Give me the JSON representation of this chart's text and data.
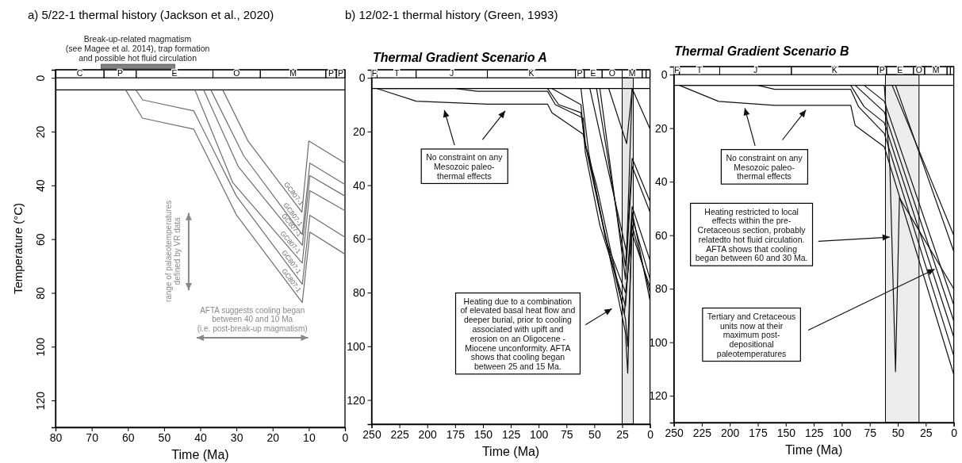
{
  "chart_data": [
    {
      "type": "line",
      "title": "a) 5/22-1 thermal history (Jackson et al., 2020)",
      "xlabel": "Time (Ma)",
      "ylabel": "Temperature (°C)",
      "xlim": [
        80,
        0
      ],
      "ylim": [
        130,
        -3
      ],
      "xticks": [
        80,
        70,
        60,
        50,
        40,
        30,
        20,
        10,
        0
      ],
      "yticks": [
        0,
        20,
        40,
        60,
        80,
        100,
        120
      ],
      "marker": "none",
      "line_style": "solid",
      "series": [
        {
          "name": "GC807-1",
          "color": "#6e6e6e",
          "x": [
            33.7,
            26.8,
            11.9,
            10,
            0
          ],
          "values": [
            4.7,
            23.5,
            50,
            23.5,
            31.7
          ]
        },
        {
          "name": "GC807-1",
          "color": "#6e6e6e",
          "x": [
            37,
            28,
            11.8,
            9.7,
            0
          ],
          "values": [
            4.7,
            29,
            58.3,
            31.7,
            39.7
          ]
        },
        {
          "name": "GC807-1",
          "color": "#6e6e6e",
          "x": [
            39,
            29.5,
            11.8,
            9.7,
            0
          ],
          "values": [
            4.7,
            33,
            62.3,
            36.4,
            44
          ]
        },
        {
          "name": "GC807-1",
          "color": "#6e6e6e",
          "x": [
            41.4,
            31,
            11.8,
            9.7,
            0
          ],
          "values": [
            4.7,
            39,
            68.9,
            42,
            49.4
          ]
        },
        {
          "name": "GC807-1",
          "color": "#6e6e6e",
          "x": [
            57.7,
            55.9,
            41.8,
            30,
            11.8,
            9.7,
            0
          ],
          "values": [
            4.7,
            8.2,
            12.3,
            44,
            76.8,
            51.1,
            59.3
          ]
        },
        {
          "name": "GC807-1",
          "color": "#6e6e6e",
          "x": [
            60.5,
            56,
            41.8,
            30,
            11.8,
            9.7,
            0
          ],
          "values": [
            4.7,
            15,
            19.1,
            51,
            83.6,
            57.4,
            65.6
          ]
        }
      ],
      "ref_lines": [
        {
          "axis": "y",
          "value": 4.5,
          "color": "#000000"
        }
      ],
      "annotations": [
        "range of palaeotemperatures\ndefined by VR data",
        "AFTA suggests cooling began\nbetween 40 and 10 Ma\n(i.e. post-break-up magmatism)",
        "Break-up-related magmatism\n(see Magee et al. 2014), trap formation\nand possible hot fluid circulation",
        "C",
        "P",
        "E",
        "O",
        "M",
        "P",
        "P"
      ]
    },
    {
      "type": "line",
      "title": "b) 12/02-1 thermal history (Green, 1993)",
      "subtitle": "Thermal Gradient Scenario A",
      "xlabel": "Time (Ma)",
      "xlim": [
        250,
        0
      ],
      "ylim": [
        129,
        -3
      ],
      "xticks": [
        250,
        225,
        200,
        175,
        150,
        125,
        100,
        75,
        50,
        25,
        0
      ],
      "yticks": [
        0,
        20,
        40,
        60,
        80,
        100,
        120
      ],
      "marker": "none",
      "line_style": "solid",
      "series": [
        {
          "color": "#111111",
          "x": [
            245,
            210,
            146,
            92,
            88,
            60,
            50,
            22,
            20,
            16,
            0
          ],
          "values": [
            4,
            8.7,
            9.8,
            9.8,
            13,
            21,
            39,
            95,
            110,
            50,
            83
          ]
        },
        {
          "color": "#111111",
          "x": [
            245,
            175,
            155,
            92,
            85,
            60,
            58,
            48,
            22,
            20,
            16,
            0
          ],
          "values": [
            4,
            4,
            5,
            5,
            10,
            15,
            25,
            40,
            90,
            100,
            55,
            80
          ]
        },
        {
          "color": "#111111",
          "x": [
            92,
            82,
            62,
            58,
            45,
            23,
            16,
            0
          ],
          "values": [
            4,
            10,
            13,
            25,
            50,
            88,
            52,
            75
          ]
        },
        {
          "color": "#111111",
          "x": [
            88,
            62,
            58,
            45,
            22,
            16,
            0
          ],
          "values": [
            4,
            10,
            28,
            55,
            85,
            48,
            68
          ]
        },
        {
          "color": "#111111",
          "x": [
            62,
            55,
            40,
            22,
            16,
            0
          ],
          "values": [
            4,
            28,
            60,
            80,
            58,
            78
          ]
        },
        {
          "color": "#111111",
          "x": [
            54,
            21,
            16,
            0
          ],
          "values": [
            4,
            65,
            4,
            19
          ]
        },
        {
          "color": "#111111",
          "x": [
            37,
            21,
            16
          ],
          "values": [
            4,
            24.5,
            4
          ]
        },
        {
          "color": "#111111",
          "x": [
            48,
            22,
            16,
            0
          ],
          "values": [
            4,
            70,
            30,
            46
          ]
        },
        {
          "color": "#111111",
          "x": [
            45,
            22,
            16,
            0
          ],
          "values": [
            4,
            75,
            33,
            50
          ]
        }
      ],
      "ref_lines": [
        {
          "axis": "y",
          "value": 4,
          "color": "#000000"
        }
      ],
      "bands": [
        {
          "axis": "x",
          "from": 25,
          "to": 15,
          "color": "#e6e6e6"
        }
      ],
      "annotations": [
        "No constraint on any\nMesozoic paleo-\nthermal effects",
        "Heating due to a combination\nof elevated basal heat flow and\ndeeper burial, prior to cooling\nassociated with upift and\nerosion on an Oligocene -\nMiocene unconformity.  AFTA\nshows that cooling began\nbetween 25 and 15 Ma.",
        "F",
        "T",
        "J",
        "K",
        "P",
        "E",
        "O",
        "M"
      ]
    },
    {
      "type": "line",
      "subtitle": "Thermal Gradient Scenario B",
      "xlabel": "Time (Ma)",
      "xlim": [
        250,
        0
      ],
      "ylim": [
        130,
        -3
      ],
      "xticks": [
        250,
        225,
        200,
        175,
        150,
        125,
        100,
        75,
        50,
        25,
        0
      ],
      "yticks": [
        0,
        20,
        40,
        60,
        80,
        100,
        120
      ],
      "marker": "none",
      "line_style": "solid",
      "series": [
        {
          "color": "#111111",
          "x": [
            245,
            210,
            160,
            92,
            88,
            62,
            0
          ],
          "values": [
            4,
            10,
            11.5,
            11.5,
            19,
            27,
            112
          ]
        },
        {
          "color": "#111111",
          "x": [
            245,
            175,
            160,
            92,
            85,
            62,
            0
          ],
          "values": [
            4,
            4,
            5.5,
            5.5,
            12,
            22,
            105
          ]
        },
        {
          "color": "#111111",
          "x": [
            92,
            80,
            62,
            0
          ],
          "values": [
            4,
            12,
            18,
            98
          ]
        },
        {
          "color": "#111111",
          "x": [
            88,
            62,
            0
          ],
          "values": [
            4,
            14,
            92
          ]
        },
        {
          "color": "#111111",
          "x": [
            80,
            62,
            0
          ],
          "values": [
            4,
            10,
            86
          ]
        },
        {
          "color": "#111111",
          "x": [
            62,
            57,
            52,
            48.5,
            0
          ],
          "values": [
            4,
            35,
            111,
            46,
            80
          ]
        },
        {
          "color": "#111111",
          "x": [
            55,
            0
          ],
          "values": [
            4,
            60
          ]
        },
        {
          "color": "#111111",
          "x": [
            52,
            0
          ],
          "values": [
            4,
            66
          ]
        }
      ],
      "ref_lines": [
        {
          "axis": "y",
          "value": 4,
          "color": "#000000"
        }
      ],
      "bands": [
        {
          "axis": "x",
          "from": 61,
          "to": 31,
          "color": "#ececec"
        }
      ],
      "annotations": [
        "No constraint on any\nMesozoic paleo-\nthermal effects",
        "Heating restricted to local\neffects within the pre-\nCretaceous section, probably\nrelatedto hot fluid circulation.\nAFTA shows that cooling\nbegan between 60 and 30 Ma.",
        "Tertiary and Cretaceous\nunits  now at their\nmaximum post-\ndepositional\npaleotemperatures",
        "F",
        "T",
        "J",
        "K",
        "P",
        "E",
        "O",
        "M"
      ]
    }
  ]
}
